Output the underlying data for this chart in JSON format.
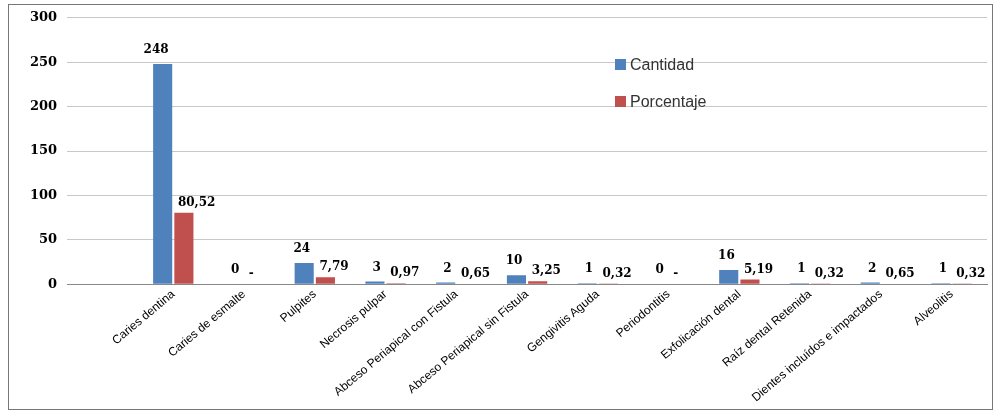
{
  "chart_data": {
    "type": "bar",
    "categories": [
      null,
      "Caries dentina",
      "Caries de esmalte",
      "Pulpites",
      "Necrosis pulpar",
      "Abceso Periapical con Fistula",
      "Abceso Periapical sin Fistula",
      "Gengivitis Aguda",
      "Periodontitis",
      "Exfolicación dental",
      "Raíz dental Retenida",
      "Dientes incluídos e impactados",
      "Alveolitis"
    ],
    "series": [
      {
        "name": "Cantidad",
        "color": "#4f81bd",
        "values": [
          null,
          248,
          0,
          24,
          3,
          2,
          10,
          1,
          0,
          16,
          1,
          2,
          1
        ],
        "value_labels": [
          null,
          "248",
          "0",
          "24",
          "3",
          "2",
          "10",
          "1",
          "0",
          "16",
          "1",
          "2",
          "1"
        ]
      },
      {
        "name": "Porcentaje",
        "color": "#c0504d",
        "values": [
          null,
          80.52,
          0,
          7.79,
          0.97,
          0.65,
          3.25,
          0.32,
          0,
          5.19,
          0.32,
          0.65,
          0.32
        ],
        "value_labels": [
          null,
          "80,52",
          "-",
          "7,79",
          "0,97",
          "0,65",
          "3,25",
          "0,32",
          "-",
          "5,19",
          "0,32",
          "0,65",
          "0,32"
        ]
      }
    ],
    "ylim": [
      0,
      300
    ],
    "yticks": [
      0,
      50,
      100,
      150,
      200,
      250,
      300
    ],
    "grid": "y",
    "legend": "top right"
  }
}
